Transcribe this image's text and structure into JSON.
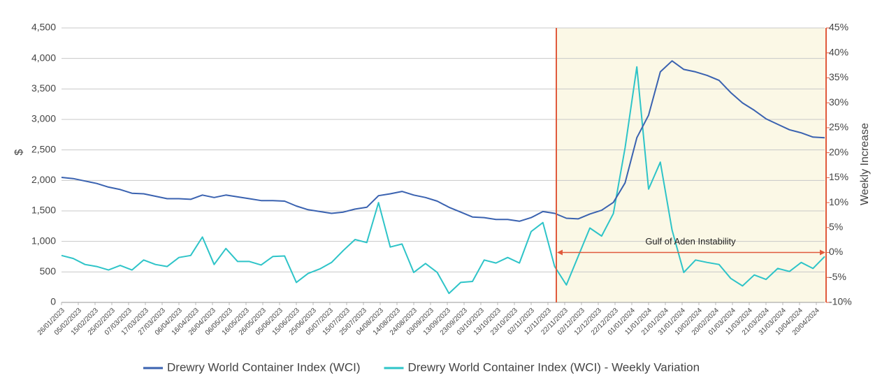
{
  "chart_data": {
    "type": "line",
    "x": [
      "26/01/2023",
      "02/02/2023",
      "09/02/2023",
      "16/02/2023",
      "23/02/2023",
      "02/03/2023",
      "09/03/2023",
      "16/03/2023",
      "23/03/2023",
      "30/03/2023",
      "06/04/2023",
      "13/04/2023",
      "20/04/2023",
      "27/04/2023",
      "04/05/2023",
      "11/05/2023",
      "18/05/2023",
      "25/05/2023",
      "01/06/2023",
      "08/06/2023",
      "15/06/2023",
      "22/06/2023",
      "29/06/2023",
      "06/07/2023",
      "13/07/2023",
      "20/07/2023",
      "27/07/2023",
      "03/08/2023",
      "10/08/2023",
      "17/08/2023",
      "24/08/2023",
      "31/08/2023",
      "07/09/2023",
      "14/09/2023",
      "21/09/2023",
      "28/09/2023",
      "05/10/2023",
      "12/10/2023",
      "19/10/2023",
      "26/10/2023",
      "02/11/2023",
      "09/11/2023",
      "16/11/2023",
      "23/11/2023",
      "30/11/2023",
      "07/12/2023",
      "14/12/2023",
      "21/12/2023",
      "28/12/2023",
      "04/01/2024",
      "11/01/2024",
      "18/01/2024",
      "25/01/2024",
      "01/02/2024",
      "08/02/2024",
      "15/02/2024",
      "22/02/2024",
      "29/02/2024",
      "07/03/2024",
      "14/03/2024",
      "21/03/2024",
      "28/03/2024",
      "04/04/2024",
      "11/04/2024",
      "18/04/2024",
      "25/04/2024"
    ],
    "series": [
      {
        "name": "Drewry World Container Index (WCI)",
        "color": "#3a62b0",
        "axis": "y",
        "values": [
          2050,
          2030,
          1990,
          1950,
          1890,
          1850,
          1790,
          1780,
          1740,
          1700,
          1700,
          1690,
          1760,
          1720,
          1760,
          1730,
          1700,
          1670,
          1670,
          1660,
          1580,
          1520,
          1490,
          1460,
          1480,
          1530,
          1560,
          1750,
          1780,
          1820,
          1760,
          1720,
          1660,
          1560,
          1480,
          1400,
          1390,
          1360,
          1360,
          1330,
          1390,
          1490,
          1460,
          1380,
          1370,
          1450,
          1510,
          1640,
          1960,
          2700,
          3070,
          3780,
          3960,
          3820,
          3780,
          3720,
          3640,
          3440,
          3270,
          3150,
          3010,
          2920,
          2830,
          2780,
          2710,
          2700
        ]
      },
      {
        "name": "Drewry World Container Index (WCI) - Weekly Variation",
        "color": "#2ec4c8",
        "axis": "y2",
        "values": [
          -0.6,
          -1.2,
          -2.4,
          -2.8,
          -3.5,
          -2.6,
          -3.5,
          -1.5,
          -2.4,
          -2.8,
          -1,
          -0.6,
          3.1,
          -2.4,
          0.8,
          -1.8,
          -1.8,
          -2.5,
          -0.8,
          -0.7,
          -6,
          -4.2,
          -3.3,
          -2,
          0.4,
          2.6,
          2,
          10,
          1.1,
          1.7,
          -4,
          -2.2,
          -4,
          -8.2,
          -6,
          -5.8,
          -1.5,
          -2.1,
          -1,
          -2.1,
          4.2,
          6,
          -2.8,
          -6.5,
          -0.8,
          4.9,
          3.3,
          7.8,
          21,
          37.2,
          12.7,
          18.1,
          4.5,
          -4,
          -1.5,
          -2,
          -2.4,
          -5.2,
          -6.7,
          -4.5,
          -5.4,
          -3.2,
          -3.8,
          -2,
          -3.2,
          -0.8
        ]
      }
    ],
    "xlim": [
      "26/01/2023",
      "25/04/2024"
    ],
    "xticks": [
      "26/01/2023",
      "05/02/2023",
      "15/02/2023",
      "25/02/2023",
      "07/03/2023",
      "17/03/2023",
      "27/03/2023",
      "06/04/2023",
      "16/04/2023",
      "26/04/2023",
      "06/05/2023",
      "16/05/2023",
      "26/05/2023",
      "05/06/2023",
      "15/06/2023",
      "25/06/2023",
      "05/07/2023",
      "15/07/2023",
      "25/07/2023",
      "04/08/2023",
      "14/08/2023",
      "24/08/2023",
      "03/09/2023",
      "13/09/2023",
      "23/09/2023",
      "03/10/2023",
      "13/10/2023",
      "23/10/2023",
      "02/11/2023",
      "12/11/2023",
      "22/11/2023",
      "02/12/2023",
      "12/12/2023",
      "22/12/2023",
      "01/01/2024",
      "11/01/2024",
      "21/01/2024",
      "31/01/2024",
      "10/02/2024",
      "20/02/2024",
      "01/03/2024",
      "11/03/2024",
      "21/03/2024",
      "31/03/2024",
      "10/04/2024",
      "20/04/2024"
    ],
    "ylabel": "$",
    "ylim": [
      0,
      4500
    ],
    "yticks": [
      0,
      500,
      {
        "value": 1000,
        "label": "1,000"
      },
      {
        "value": 1500,
        "label": "1,500"
      },
      {
        "value": 2000,
        "label": "2,000"
      },
      {
        "value": 2500,
        "label": "2,500"
      },
      {
        "value": 3000,
        "label": "3,000"
      },
      {
        "value": 3500,
        "label": "3,500"
      },
      {
        "value": 4000,
        "label": "4,000"
      },
      {
        "value": 4500,
        "label": "4,500"
      }
    ],
    "y2label": "Weekly Increase",
    "y2lim": [
      -10,
      45
    ],
    "y2ticks": [
      {
        "value": -10,
        "label": "-10%"
      },
      {
        "value": -5,
        "label": "-5%"
      },
      {
        "value": 0,
        "label": "0%"
      },
      {
        "value": 5,
        "label": "5%"
      },
      {
        "value": 10,
        "label": "10%"
      },
      {
        "value": 15,
        "label": "15%"
      },
      {
        "value": 20,
        "label": "20%"
      },
      {
        "value": 25,
        "label": "25%"
      },
      {
        "value": 30,
        "label": "30%"
      },
      {
        "value": 35,
        "label": "35%"
      },
      {
        "value": 40,
        "label": "40%"
      },
      {
        "value": 45,
        "label": "45%"
      }
    ],
    "grid": true,
    "legend": "bottom",
    "annotation": {
      "text": "Gulf of Aden Instability",
      "x": "17/11/2023",
      "y2": 0,
      "color": "#e05a3c",
      "shade": "#fbf8e6"
    }
  }
}
